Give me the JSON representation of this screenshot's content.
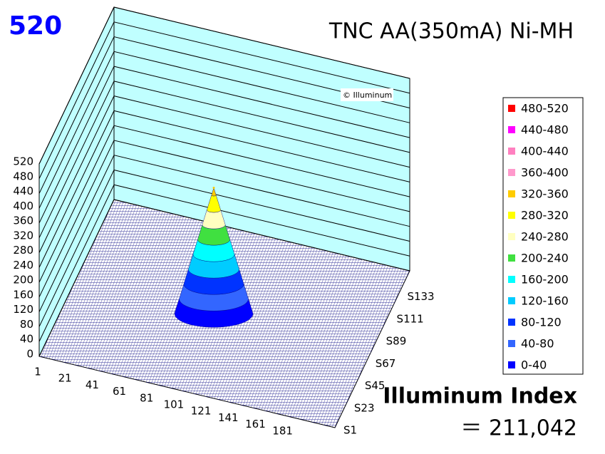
{
  "chart_data": {
    "type": "surface",
    "title": "TNC AA(350mA) Ni-MH",
    "corner_label": "520",
    "watermark": "© Illuminum",
    "index_label": "Illuminum Index",
    "index_value": "＝ 211,042",
    "x_categories": [
      "1",
      "21",
      "41",
      "61",
      "81",
      "101",
      "121",
      "141",
      "161",
      "181"
    ],
    "y_categories": [
      "S1",
      "S23",
      "S45",
      "S67",
      "S89",
      "S111",
      "S133"
    ],
    "zlim": [
      0,
      520
    ],
    "zticks": [
      0,
      40,
      80,
      120,
      160,
      200,
      240,
      280,
      320,
      360,
      400,
      440,
      480,
      520
    ],
    "peak": 340,
    "wall_color": "#c0ffff",
    "mesh_color": "#000080",
    "legend": [
      {
        "name": "480-520",
        "color": "#ff0000"
      },
      {
        "name": "440-480",
        "color": "#ff00ff"
      },
      {
        "name": "400-440",
        "color": "#ff80c0"
      },
      {
        "name": "360-400",
        "color": "#ff99cc"
      },
      {
        "name": "320-360",
        "color": "#ffcc00"
      },
      {
        "name": "280-320",
        "color": "#ffff00"
      },
      {
        "name": "240-280",
        "color": "#ffffc0"
      },
      {
        "name": "200-240",
        "color": "#40e040"
      },
      {
        "name": "160-200",
        "color": "#00ffff"
      },
      {
        "name": "120-160",
        "color": "#00ccff"
      },
      {
        "name": "80-120",
        "color": "#0033ff"
      },
      {
        "name": "40-80",
        "color": "#3366ff"
      },
      {
        "name": "0-40",
        "color": "#0000ff"
      }
    ]
  }
}
